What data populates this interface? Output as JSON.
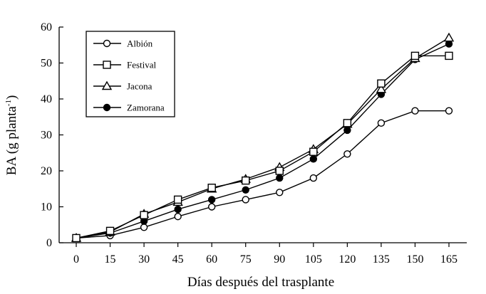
{
  "chart_data": {
    "type": "line",
    "title": "",
    "xlabel": "Días después del trasplante",
    "ylabel": {
      "main": "BA (g planta",
      "sup": "-1",
      "close": ")"
    },
    "x": [
      0,
      15,
      30,
      45,
      60,
      75,
      90,
      105,
      120,
      135,
      150,
      165
    ],
    "xlim": [
      0,
      165
    ],
    "ylim": [
      0,
      60
    ],
    "xticks": [
      0,
      15,
      30,
      45,
      60,
      75,
      90,
      105,
      120,
      135,
      150,
      165
    ],
    "yticks": [
      0,
      10,
      20,
      30,
      40,
      50,
      60
    ],
    "grid": false,
    "legend_position": "top-left",
    "series": [
      {
        "name": "Albión",
        "marker": "circle-open",
        "values": [
          1.3,
          2.0,
          4.3,
          7.3,
          10.0,
          12.0,
          14.0,
          18.0,
          24.7,
          33.3,
          36.7,
          36.7
        ]
      },
      {
        "name": "Festival",
        "marker": "square-open",
        "values": [
          1.3,
          3.3,
          7.7,
          12.0,
          15.3,
          17.3,
          20.0,
          25.3,
          33.3,
          44.3,
          52.0,
          52.0
        ]
      },
      {
        "name": "Jacona",
        "marker": "triangle-open",
        "values": [
          1.3,
          3.0,
          8.0,
          11.3,
          15.0,
          17.7,
          21.0,
          26.0,
          33.0,
          42.7,
          51.3,
          57.0
        ]
      },
      {
        "name": "Zamorana",
        "marker": "circle-filled",
        "values": [
          1.3,
          2.7,
          6.0,
          9.3,
          12.0,
          14.7,
          18.0,
          23.3,
          31.3,
          41.3,
          51.0,
          55.3
        ]
      }
    ],
    "colors": {
      "line": "#000000",
      "marker_fill_open": "#ffffff",
      "marker_fill_filled": "#000000"
    }
  }
}
